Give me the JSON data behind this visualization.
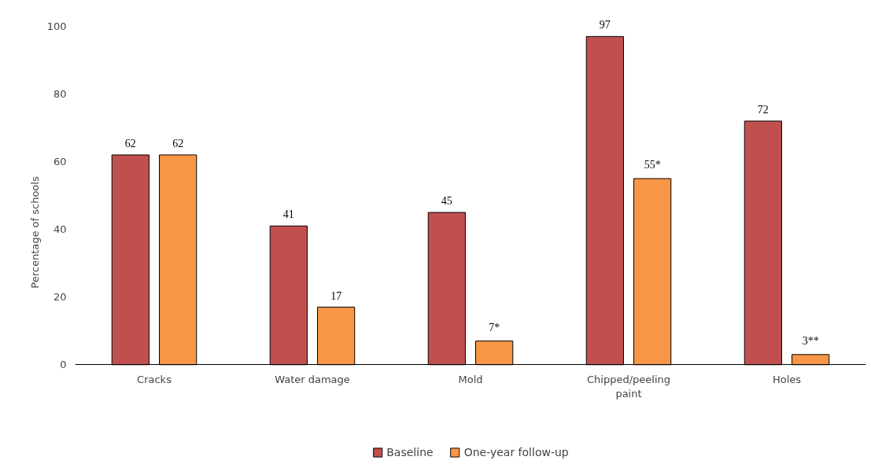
{
  "chart_data": {
    "type": "bar",
    "ylabel": "Percentage of schools",
    "categories": [
      "Cracks",
      "Water damage",
      "Mold",
      "Chipped/peeling paint",
      "Holes"
    ],
    "series": [
      {
        "name": "Baseline",
        "color": "#c0504d",
        "values": [
          62,
          41,
          45,
          97,
          72
        ],
        "value_labels": [
          "62",
          "41",
          "45",
          "97",
          "72"
        ]
      },
      {
        "name": "One-year follow-up",
        "color": "#f79646",
        "values": [
          62,
          17,
          7,
          55,
          3
        ],
        "value_labels": [
          "62",
          "17",
          "7*",
          "55*",
          "3**"
        ]
      }
    ],
    "ylim": [
      0,
      100
    ],
    "yticks": [
      0,
      20,
      40,
      60,
      80,
      100
    ],
    "grid": false,
    "legend": "bottom"
  }
}
